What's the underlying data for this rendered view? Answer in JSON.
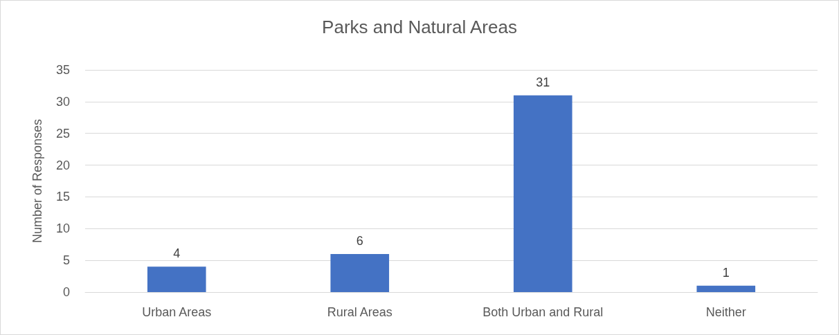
{
  "chart_data": {
    "type": "bar",
    "title": "Parks and Natural Areas",
    "ylabel": "Number of Responses",
    "categories": [
      "Urban Areas",
      "Rural Areas",
      "Both Urban and Rural",
      "Neither"
    ],
    "values": [
      4,
      6,
      31,
      1
    ],
    "color": "#4472c4",
    "ylim": [
      0,
      35
    ],
    "yticks": [
      0,
      5,
      10,
      15,
      20,
      25,
      30,
      35
    ],
    "grid": "y",
    "data_labels": true
  }
}
